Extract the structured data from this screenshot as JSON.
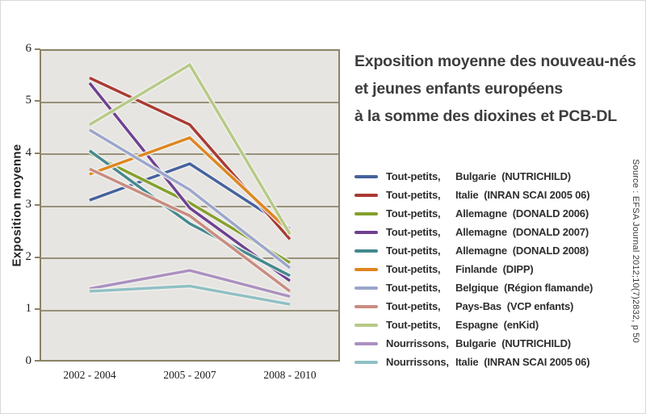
{
  "title": {
    "line1": "Exposition moyenne des nouveau-nés",
    "line2": "et jeunes enfants européens",
    "line3": "à la somme des dioxines et PCB-DL"
  },
  "source": "Source : EFSA Journal 2012;10(7)2832, p 50",
  "colors": {
    "plot_background": "#e6e5e1",
    "grid": "#8a8266",
    "title_text": "#3d3d3d"
  },
  "chart_data": {
    "type": "line",
    "categories": [
      "2002 - 2004",
      "2005 - 2007",
      "2008 - 2010"
    ],
    "xlabel": "",
    "ylabel": "Exposition moyenne",
    "ylim": [
      0,
      6
    ],
    "yticks": [
      6,
      5,
      4,
      3,
      2,
      1,
      0
    ],
    "ytick_labels": [
      "6",
      "5",
      "4",
      "3",
      "2",
      "1",
      "0"
    ],
    "grid": "horizontal",
    "legend_position": "right",
    "series": [
      {
        "group": "Tout-petits,",
        "label": "Bulgarie  (NUTRICHILD)",
        "color": "#44629e",
        "values": [
          3.1,
          3.8,
          2.55
        ]
      },
      {
        "group": "Tout-petits,",
        "label": "Italie  (INRAN SCAI 2005 06)",
        "color": "#a93a32",
        "values": [
          5.45,
          4.55,
          2.35
        ]
      },
      {
        "group": "Tout-petits,",
        "label": "Allemagne  (DONALD 2006)",
        "color": "#84a02c",
        "values": [
          4.0,
          3.05,
          1.9
        ]
      },
      {
        "group": "Tout-petits,",
        "label": "Allemagne  (DONALD 2007)",
        "color": "#6e4191",
        "values": [
          5.35,
          2.95,
          1.55
        ]
      },
      {
        "group": "Tout-petits,",
        "label": "Allemagne  (DONALD 2008)",
        "color": "#43898e",
        "values": [
          4.05,
          2.65,
          1.65
        ]
      },
      {
        "group": "Tout-petits,",
        "label": "Finlande  (DIPP)",
        "color": "#df861f",
        "values": [
          3.6,
          4.3,
          2.5
        ]
      },
      {
        "group": "Tout-petits,",
        "label": "Belgique  (Région flamande)",
        "color": "#9ba6cc",
        "values": [
          4.45,
          3.3,
          1.8
        ]
      },
      {
        "group": "Tout-petits,",
        "label": "Pays-Bas  (VCP enfants)",
        "color": "#c98c80",
        "values": [
          3.7,
          2.8,
          1.35
        ]
      },
      {
        "group": "Tout-petits,",
        "label": "Espagne  (enKid)",
        "color": "#b6ca85",
        "values": [
          4.55,
          5.7,
          2.45
        ]
      },
      {
        "group": "Nourrissons,",
        "label": "Bulgarie  (NUTRICHILD)",
        "color": "#ab90c0",
        "values": [
          1.4,
          1.75,
          1.25
        ]
      },
      {
        "group": "Nourrissons,",
        "label": "Italie  (INRAN SCAI 2005 06)",
        "color": "#8fc0c4",
        "values": [
          1.35,
          1.45,
          1.1
        ]
      }
    ]
  }
}
